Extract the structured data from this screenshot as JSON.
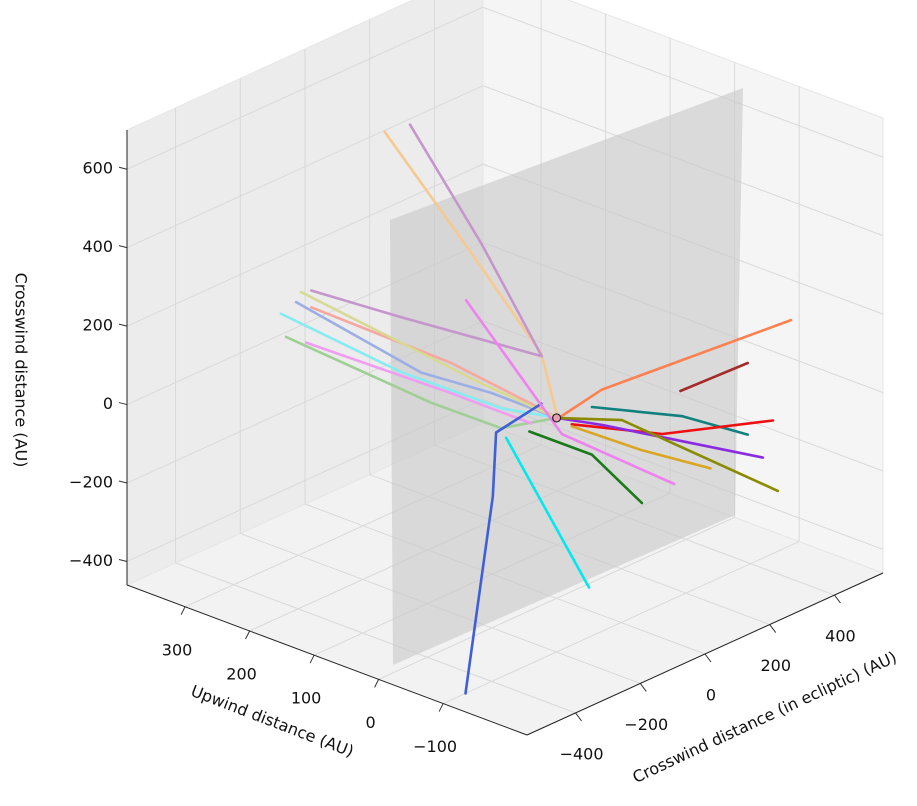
{
  "chart_data": {
    "type": "line3d",
    "xlabel": "Upwind distance (AU)",
    "ylabel": "Crosswind distance (in ecliptic) (AU)",
    "zlabel": "Crosswind distance (AU)",
    "xlim": [
      -230,
      390
    ],
    "ylim": [
      -550,
      550
    ],
    "zlim": [
      -460,
      700
    ],
    "xticks": [
      {
        "value": -100,
        "label": "−100"
      },
      0,
      100,
      200,
      300
    ],
    "yticks": [
      {
        "value": -400,
        "label": "−400"
      },
      {
        "value": -200,
        "label": "−200"
      },
      0,
      200,
      400
    ],
    "zticks": [
      {
        "value": -400,
        "label": "−400"
      },
      {
        "value": -200,
        "label": "−200"
      },
      0,
      200,
      400,
      600
    ],
    "grid": true,
    "origin_marker": {
      "x": 0,
      "y": 0,
      "z": 0,
      "color": "#e8a0b0"
    },
    "series": [
      {
        "color": "#f7c98f",
        "x": [
          300,
          150,
          20,
          0
        ],
        "y": [
          67,
          37,
          -7,
          0
        ],
        "z": [
          519,
          312,
          154,
          10
        ]
      },
      {
        "color": "#c596cc",
        "x": [
          320,
          180,
          40,
          150,
          300
        ],
        "y": [
          185,
          128,
          34,
          -181,
          -160
        ],
        "z": [
          481,
          283,
          120,
          232,
          200
        ]
      },
      {
        "color": "#9fcf95",
        "x": [
          300,
          120,
          30,
          0
        ],
        "y": [
          -238,
          -148,
          -111,
          0
        ],
        "z": [
          111,
          20,
          -3,
          0
        ]
      },
      {
        "color": "#86ecf2",
        "x": [
          300,
          150,
          40,
          0
        ],
        "y": [
          -254,
          -181,
          -91,
          0
        ],
        "z": [
          176,
          92,
          34,
          0
        ]
      },
      {
        "color": "#9daee6",
        "x": [
          300,
          130,
          40,
          0
        ],
        "y": [
          -207,
          -159,
          -122,
          0
        ],
        "z": [
          188,
          95,
          85,
          0
        ]
      },
      {
        "color": "#f5a7a0",
        "x": [
          300,
          120,
          20,
          0
        ],
        "y": [
          -160,
          -86,
          -7,
          0
        ],
        "z": [
          157,
          98,
          13,
          0
        ]
      },
      {
        "color": "#f09cf0",
        "x": [
          300,
          120,
          20
        ],
        "y": [
          -176,
          -86,
          -38
        ],
        "z": [
          73,
          21,
          -12
        ]
      },
      {
        "color": "#d6da93",
        "x": [
          300,
          80,
          0
        ],
        "y": [
          -192,
          -73,
          0
        ],
        "z": [
          208,
          66,
          0
        ]
      },
      {
        "color": "#3f5fd6",
        "x": [
          0,
          0,
          -50,
          -100
        ],
        "y": [
          -47,
          -187,
          -297,
          -481
        ],
        "z": [
          54,
          33,
          -58,
          -460
        ]
      },
      {
        "color": "#00e8f0",
        "x": [
          0,
          -150
        ],
        "y": [
          -156,
          -199
        ],
        "z": [
          8,
          -265
        ]
      },
      {
        "color": "#ff8050",
        "x": [
          0,
          -20,
          -100
        ],
        "y": [
          16,
          100,
          525
        ],
        "z": [
          -1,
          47,
          114
        ]
      },
      {
        "color": "#a52a2a",
        "x": [
          -60,
          -100
        ],
        "y": [
          263,
          391
        ],
        "z": [
          7,
          55
        ]
      },
      {
        "color": "#138080",
        "x": [
          0,
          -40,
          -80
        ],
        "y": [
          109,
          309,
          431
        ],
        "z": [
          -13,
          -87,
          -155
        ]
      },
      {
        "color": "#ee1010",
        "x": [
          0,
          -40,
          -100
        ],
        "y": [
          47,
          247,
          469
        ],
        "z": [
          -34,
          -109,
          -121
        ]
      },
      {
        "color": "#8a2be2",
        "x": [
          0,
          -20,
          -100
        ],
        "y": [
          0,
          100,
          438
        ],
        "z": [
          0,
          -43,
          -204
        ]
      },
      {
        "color": "#8b8b00",
        "x": [
          0,
          -20,
          -100
        ],
        "y": [
          0,
          162,
          484
        ],
        "z": [
          0,
          -54,
          -306
        ]
      },
      {
        "color": "#daa520",
        "x": [
          0,
          -40,
          -80
        ],
        "y": [
          47,
          184,
          316
        ],
        "z": [
          -39,
          -127,
          -198
        ]
      },
      {
        "color": "#ee82ee",
        "x": [
          60,
          0,
          -60
        ],
        "y": [
          -160,
          16,
          244
        ],
        "z": [
          323,
          -47,
          -223
        ]
      },
      {
        "color": "#1a7a1a",
        "x": [
          0,
          -20,
          -60
        ],
        "y": [
          -84,
          69,
          144
        ],
        "z": [
          -3,
          -107,
          -234
        ]
      }
    ]
  }
}
